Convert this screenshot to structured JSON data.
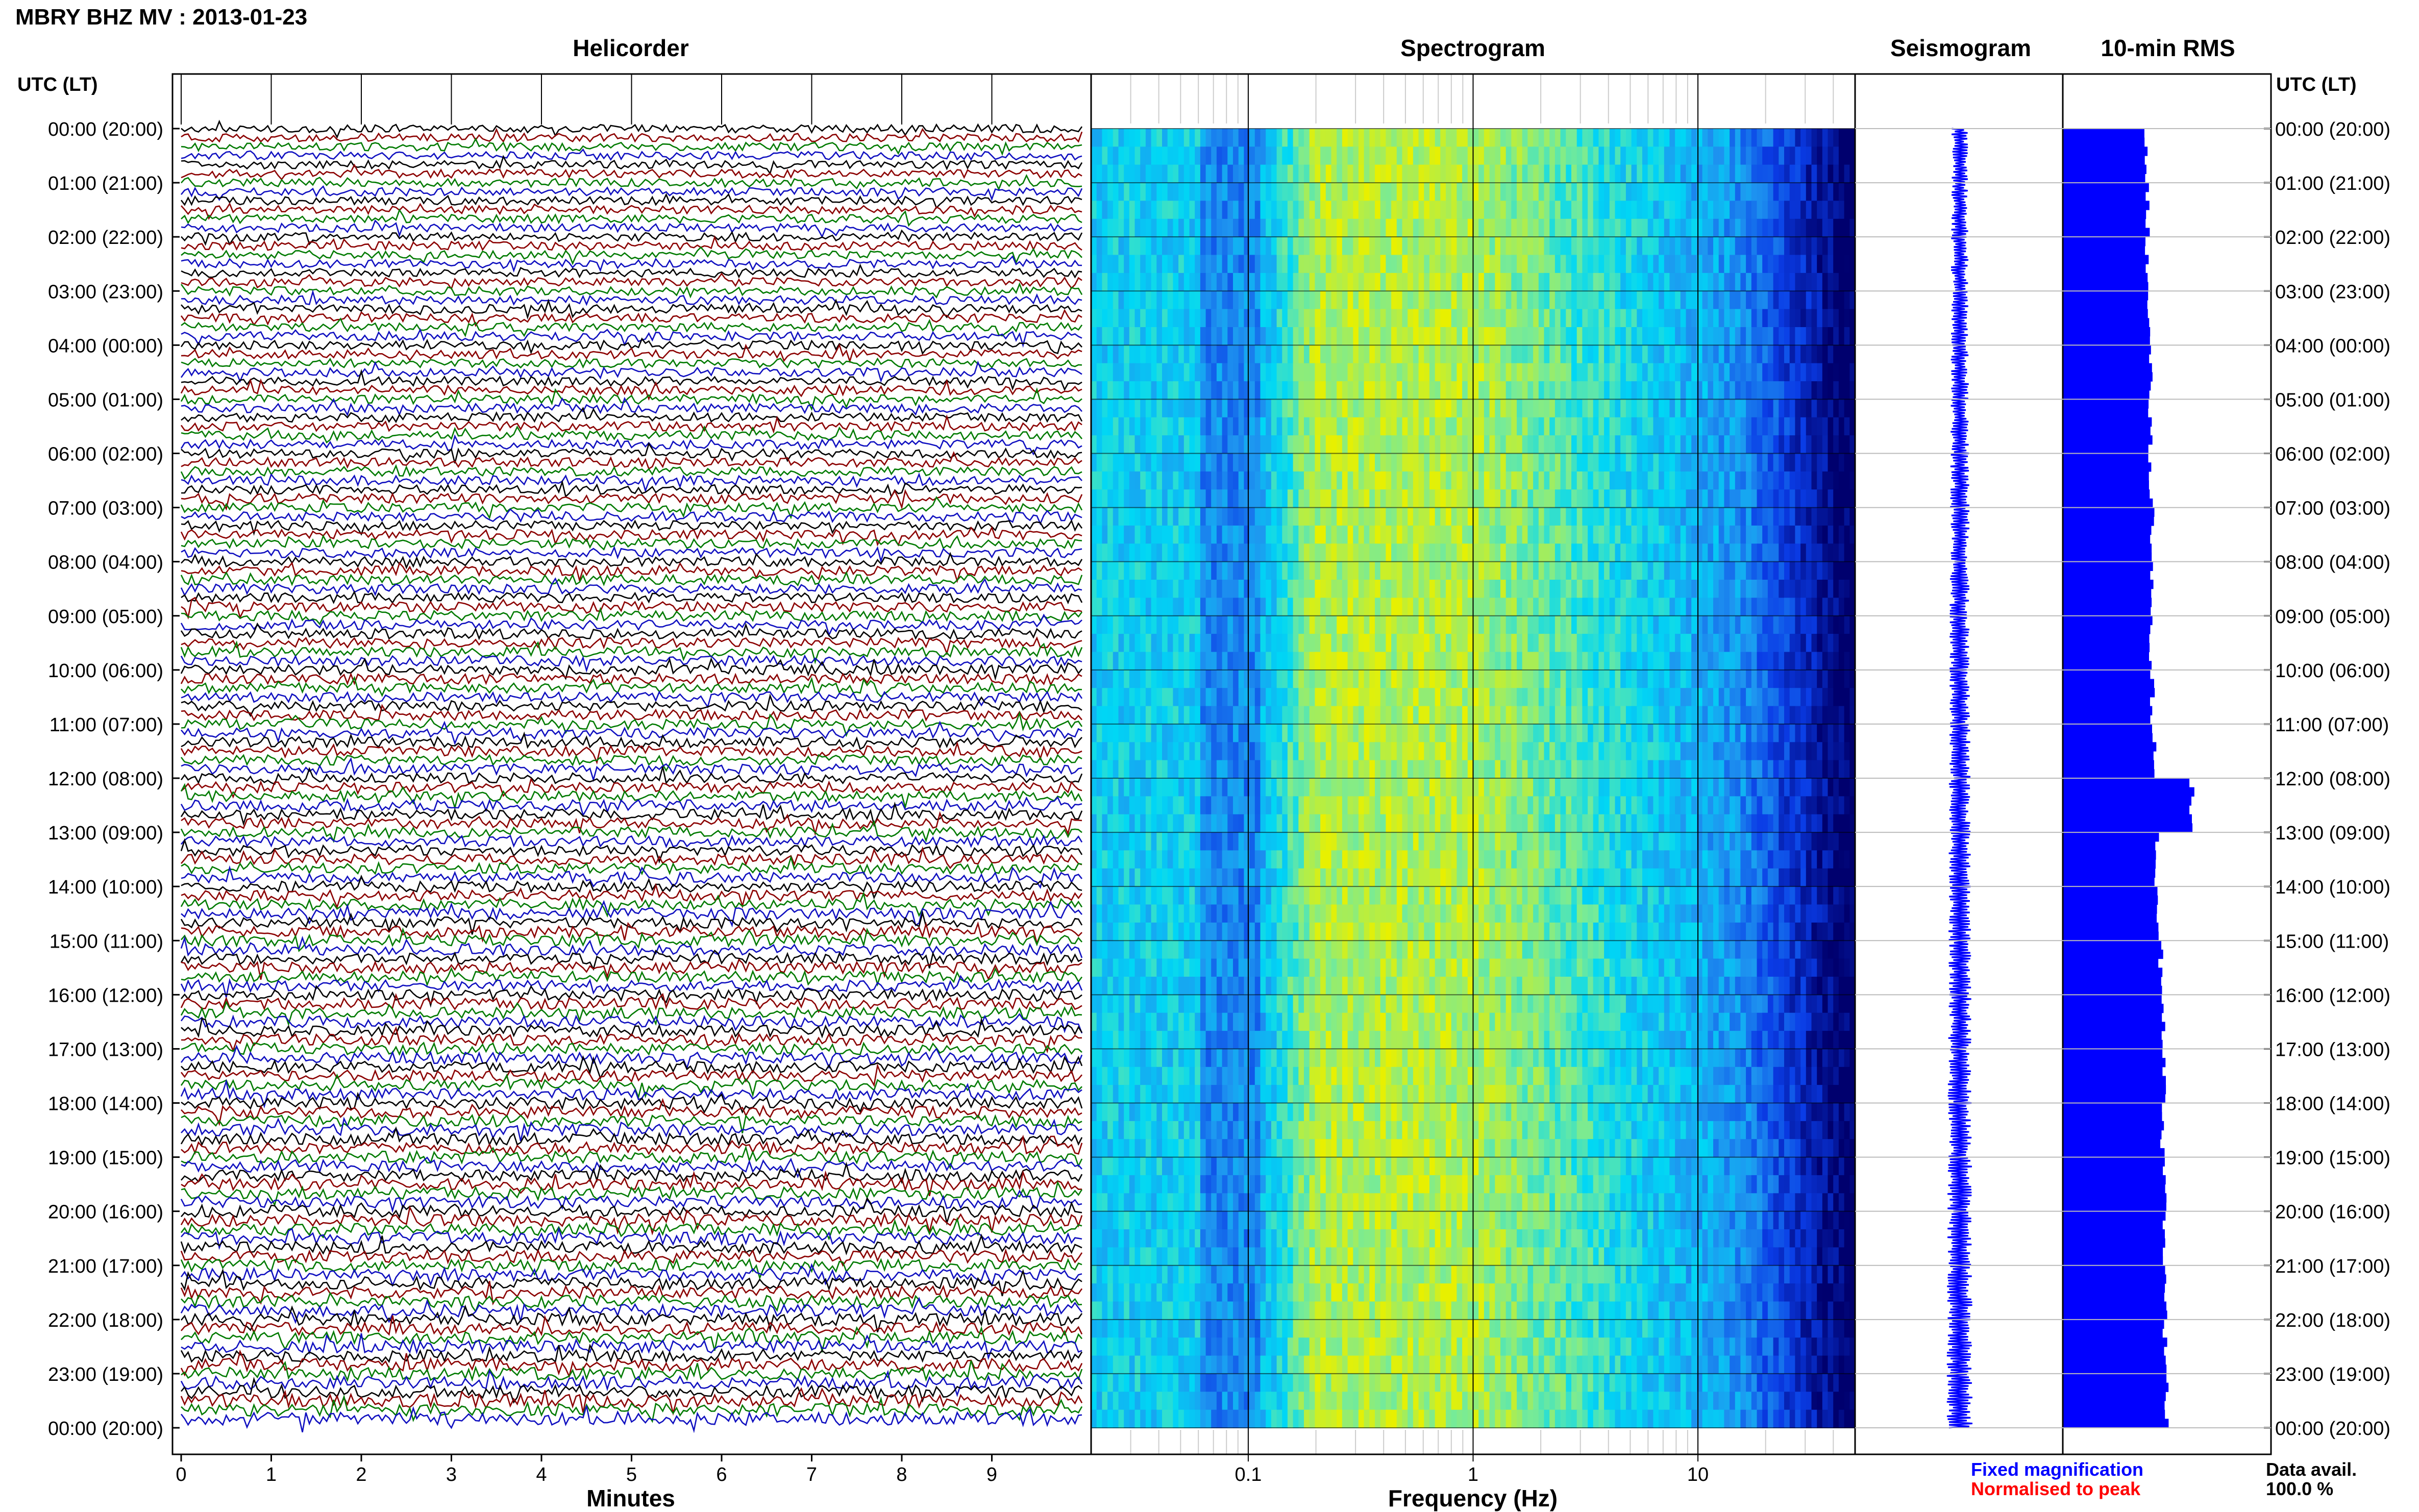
{
  "header": {
    "title": "MBRY BHZ MV : 2013-01-23",
    "panels": {
      "helicorder": "Helicorder",
      "spectrogram": "Spectrogram",
      "seismogram": "Seismogram",
      "rms": "10-min RMS"
    },
    "utc_label": "UTC (LT)"
  },
  "footer": {
    "xlabel_helicorder": "Minutes",
    "xlabel_spectrogram": "Frequency (Hz)",
    "legend_fixed": "Fixed magnification",
    "legend_normalised": "Normalised to peak",
    "data_avail_label": "Data avail.",
    "data_avail_value": "100.0 %"
  },
  "colors": {
    "trace_black": "#000000",
    "trace_red": "#8b0000",
    "trace_green": "#007a00",
    "trace_blue": "#1010c0",
    "spectro_cyan": "#00e0ff",
    "spectro_yellow": "#e8f000",
    "spectro_navy": "#00006e",
    "rms_blue": "#0000ff",
    "legend_blue": "#0000ff",
    "legend_red": "#ff0000"
  },
  "chart_data": [
    {
      "type": "line",
      "name": "helicorder",
      "title": "Helicorder",
      "xlabel": "Minutes",
      "xlim": [
        0,
        10
      ],
      "x_ticks": [
        "0",
        "1",
        "2",
        "3",
        "4",
        "5",
        "6",
        "7",
        "8",
        "9"
      ],
      "y_tick_labels": [
        "00:00 (20:00)",
        "01:00 (21:00)",
        "02:00 (22:00)",
        "03:00 (23:00)",
        "04:00 (00:00)",
        "05:00 (01:00)",
        "06:00 (02:00)",
        "07:00 (03:00)",
        "08:00 (04:00)",
        "09:00 (05:00)",
        "10:00 (06:00)",
        "11:00 (07:00)",
        "12:00 (08:00)",
        "13:00 (09:00)",
        "14:00 (10:00)",
        "15:00 (11:00)",
        "16:00 (12:00)",
        "17:00 (13:00)",
        "18:00 (14:00)",
        "19:00 (15:00)",
        "20:00 (16:00)",
        "21:00 (17:00)",
        "22:00 (18:00)",
        "23:00 (19:00)",
        "00:00 (20:00)"
      ],
      "rows": 144,
      "row_minutes": 10,
      "trace_colors": [
        "black",
        "red",
        "green",
        "blue"
      ]
    },
    {
      "type": "heatmap",
      "name": "spectrogram",
      "title": "Spectrogram",
      "xlabel": "Frequency (Hz)",
      "x_scale": "log",
      "xlim": [
        0.02,
        50
      ],
      "x_ticks": [
        "0.1",
        "1",
        "10"
      ],
      "x_tick_values": [
        0.1,
        1,
        10
      ],
      "peak_band_hz": [
        0.2,
        1.0
      ],
      "rows": 144
    },
    {
      "type": "line",
      "name": "seismogram",
      "title": "Seismogram",
      "rows": 144
    },
    {
      "type": "bar",
      "name": "rms",
      "title": "10-min RMS",
      "orientation": "horizontal",
      "hourly_rms_relative": [
        0.4,
        0.41,
        0.4,
        0.41,
        0.42,
        0.42,
        0.42,
        0.43,
        0.43,
        0.42,
        0.43,
        0.44,
        0.62,
        0.45,
        0.46,
        0.47,
        0.48,
        0.49,
        0.48,
        0.49,
        0.49,
        0.49,
        0.49,
        0.5
      ]
    }
  ]
}
